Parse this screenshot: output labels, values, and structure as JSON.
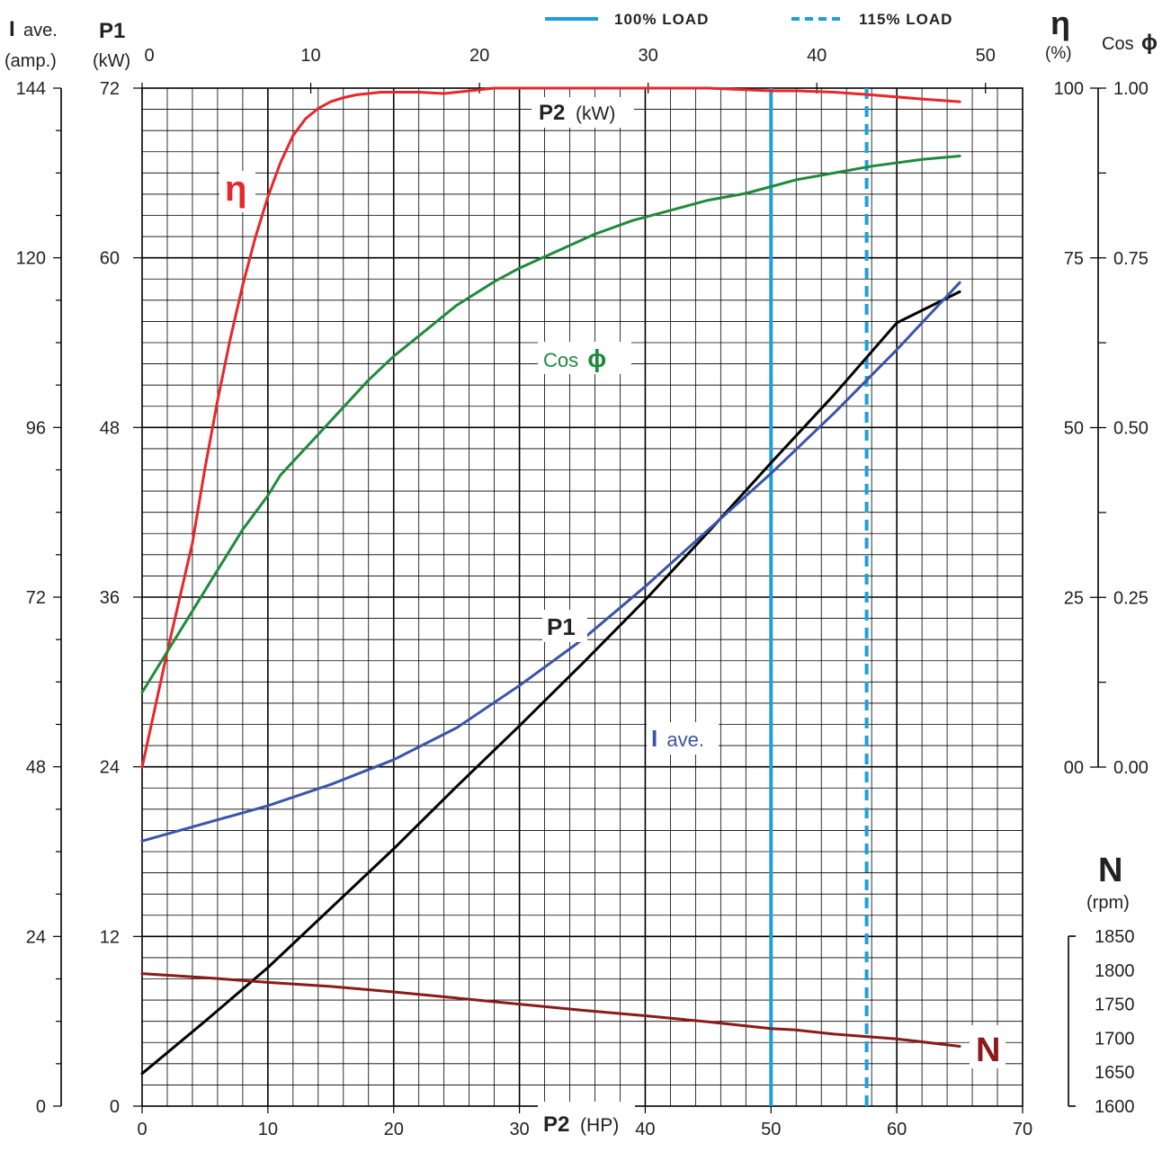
{
  "legend": [
    {
      "label": "100% LOAD",
      "style": "solid"
    },
    {
      "label": "115% LOAD",
      "style": "dashed"
    }
  ],
  "colors": {
    "efficiency": "#e8262b",
    "cos_phi": "#1f8a3c",
    "p1": "#000000",
    "current": "#3a54a8",
    "speed": "#8b1a1a",
    "load_line": "#1ba0dc",
    "legend_text": "#888888"
  },
  "axes": {
    "current": {
      "symbol": "I",
      "name": "ave.",
      "unit": "(amp.)",
      "ticks": [
        "0",
        "24",
        "48",
        "72",
        "96",
        "120",
        "144"
      ]
    },
    "p1": {
      "symbol": "P1",
      "unit": "(kW)",
      "ticks": [
        "0",
        "12",
        "24",
        "36",
        "48",
        "60",
        "72"
      ]
    },
    "p2_kw": {
      "ticks": [
        "0",
        "10",
        "20",
        "30",
        "40",
        "50"
      ]
    },
    "p2_hp": {
      "ticks": [
        "0",
        "10",
        "20",
        "30",
        "40",
        "50",
        "60",
        "70"
      ]
    },
    "efficiency": {
      "symbol": "η",
      "unit": "(%)",
      "ticks": [
        "00",
        "25",
        "50",
        "75",
        "100"
      ]
    },
    "cos_phi": {
      "name": "Cos",
      "symbol": "ϕ",
      "ticks": [
        "0.00",
        "0.25",
        "0.50",
        "0.75",
        "1.00"
      ]
    },
    "speed": {
      "symbol": "N",
      "unit": "(rpm)",
      "ticks": [
        "1600",
        "1650",
        "1700",
        "1750",
        "1800",
        "1850"
      ]
    }
  },
  "inline_labels": {
    "p2_kw": {
      "bold": "P2",
      "rest": "(kW)"
    },
    "p2_hp": {
      "bold": "P2",
      "rest": "(HP)"
    },
    "eta": "η",
    "cos_phi": {
      "name": "Cos",
      "symbol": "ϕ"
    },
    "p1": "P1",
    "current": {
      "bold": "I",
      "rest": "ave."
    },
    "speed": "N"
  },
  "chart_data": {
    "type": "line",
    "x_axis": {
      "quantity": "P2",
      "unit": "HP",
      "range": [
        0,
        70
      ],
      "grid_step": 2
    },
    "secondary_x_axis": {
      "quantity": "P2",
      "unit": "kW",
      "ticks": [
        0,
        10,
        20,
        30,
        40,
        50
      ],
      "hp_per_kw": 1.341
    },
    "y_axes": {
      "p1_kw": [
        0,
        72
      ],
      "current_amp": [
        0,
        144
      ],
      "efficiency_pct": [
        0,
        100
      ],
      "cos_phi": [
        0,
        1
      ],
      "speed_rpm": [
        1600,
        1850
      ]
    },
    "grid": true,
    "legend": "top-center",
    "load_lines_hp": {
      "100% LOAD": 50,
      "115% LOAD": 57.6
    },
    "series": [
      {
        "name": "η",
        "axis": "efficiency_pct",
        "x": [
          0,
          2,
          4,
          5,
          6,
          7,
          8,
          9,
          10,
          11,
          12,
          13,
          14,
          15,
          16,
          17,
          18,
          19,
          20,
          22,
          24,
          28,
          30,
          35,
          40,
          45,
          50,
          52,
          55,
          58,
          62,
          65
        ],
        "y": [
          0,
          17,
          33,
          44,
          54,
          63,
          71,
          78,
          84,
          89,
          93,
          95.5,
          97,
          98,
          98.6,
          99,
          99.2,
          99.4,
          99.4,
          99.4,
          99.2,
          100,
          100,
          100,
          100,
          100,
          99.6,
          99.6,
          99.4,
          99,
          98.4,
          98
        ]
      },
      {
        "name": "Cos",
        "axis": "cos_phi",
        "x": [
          0,
          2,
          4,
          6,
          8,
          10,
          11,
          14,
          18,
          20,
          22,
          25,
          28,
          30,
          33,
          36,
          39,
          42,
          45,
          48,
          50,
          52,
          55,
          58,
          62,
          65
        ],
        "y": [
          0.11,
          0.17,
          0.23,
          0.29,
          0.35,
          0.4,
          0.43,
          0.49,
          0.57,
          0.605,
          0.635,
          0.68,
          0.715,
          0.735,
          0.76,
          0.785,
          0.805,
          0.82,
          0.835,
          0.845,
          0.855,
          0.865,
          0.875,
          0.885,
          0.895,
          0.9
        ]
      },
      {
        "name": "P1",
        "axis": "p1_kw",
        "x": [
          0,
          5,
          10,
          15,
          20,
          25,
          30,
          35,
          40,
          45,
          50,
          55,
          60,
          65
        ],
        "y": [
          2.3,
          6.0,
          9.8,
          14.0,
          18.2,
          22.6,
          26.9,
          31.3,
          35.8,
          40.6,
          45.5,
          50.3,
          55.4,
          57.6
        ]
      },
      {
        "name": "I ave.",
        "axis": "current_amp",
        "x": [
          0,
          5,
          10,
          15,
          20,
          25,
          30,
          35,
          40,
          45,
          50,
          55,
          60,
          65
        ],
        "y": [
          37.5,
          40.0,
          42.5,
          45.5,
          49.0,
          53.5,
          59.5,
          66.0,
          73.5,
          81.5,
          89.5,
          98.0,
          107.0,
          116.5
        ]
      },
      {
        "name": "N",
        "axis": "speed_rpm",
        "x": [
          0,
          5,
          10,
          15,
          20,
          25,
          30,
          35,
          40,
          45,
          50,
          52,
          55,
          60,
          65
        ],
        "y": [
          1795,
          1789,
          1782,
          1776,
          1768,
          1759,
          1750,
          1741,
          1733,
          1724,
          1714,
          1712,
          1706,
          1699,
          1688
        ]
      }
    ]
  }
}
